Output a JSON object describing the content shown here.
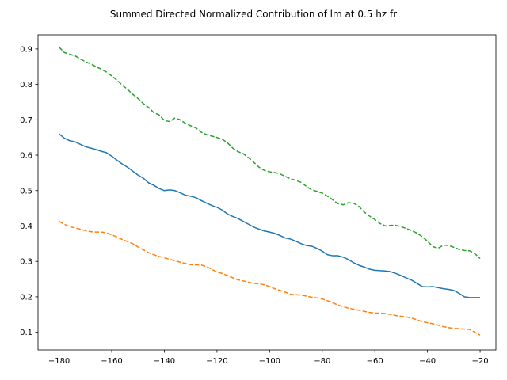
{
  "chart_data": {
    "type": "line",
    "title": "Summed Directed Normalized Contribution of lm at 0.5 hz fr",
    "xlabel": "",
    "ylabel": "",
    "xlim": [
      -188,
      -14
    ],
    "ylim": [
      0.05,
      0.94
    ],
    "x_ticks": [
      -180,
      -160,
      -140,
      -120,
      -100,
      -80,
      -60,
      -40,
      -20
    ],
    "x_tick_labels": [
      "−180",
      "−160",
      "−140",
      "−120",
      "−100",
      "−80",
      "−60",
      "−40",
      "−20"
    ],
    "y_ticks": [
      0.1,
      0.2,
      0.3,
      0.4,
      0.5,
      0.6,
      0.7,
      0.8,
      0.9
    ],
    "y_tick_labels": [
      "0.1",
      "0.2",
      "0.3",
      "0.4",
      "0.5",
      "0.6",
      "0.7",
      "0.8",
      "0.9"
    ],
    "grid": false,
    "legend": "none",
    "x": [
      -180,
      -178,
      -176,
      -174,
      -172,
      -170,
      -168,
      -166,
      -164,
      -162,
      -160,
      -158,
      -156,
      -154,
      -152,
      -150,
      -148,
      -146,
      -144,
      -142,
      -140,
      -138,
      -136,
      -134,
      -132,
      -130,
      -128,
      -126,
      -124,
      -122,
      -120,
      -118,
      -116,
      -114,
      -112,
      -110,
      -108,
      -106,
      -104,
      -102,
      -100,
      -98,
      -96,
      -94,
      -92,
      -90,
      -88,
      -86,
      -84,
      -82,
      -80,
      -78,
      -76,
      -74,
      -72,
      -70,
      -68,
      -66,
      -64,
      -62,
      -60,
      -58,
      -56,
      -54,
      -52,
      -50,
      -48,
      -46,
      -44,
      -42,
      -40,
      -38,
      -36,
      -34,
      -32,
      -30,
      -28,
      -26,
      -24,
      -22,
      -20
    ],
    "series": [
      {
        "color": "#1f77b4",
        "style": "solid",
        "values": [
          0.66,
          0.648,
          0.641,
          0.638,
          0.631,
          0.624,
          0.62,
          0.616,
          0.611,
          0.607,
          0.597,
          0.586,
          0.575,
          0.566,
          0.555,
          0.544,
          0.535,
          0.522,
          0.515,
          0.506,
          0.5,
          0.502,
          0.5,
          0.494,
          0.487,
          0.484,
          0.48,
          0.472,
          0.465,
          0.458,
          0.453,
          0.445,
          0.434,
          0.427,
          0.421,
          0.413,
          0.405,
          0.397,
          0.391,
          0.386,
          0.383,
          0.379,
          0.373,
          0.366,
          0.363,
          0.357,
          0.35,
          0.345,
          0.343,
          0.337,
          0.329,
          0.319,
          0.316,
          0.316,
          0.312,
          0.305,
          0.296,
          0.289,
          0.284,
          0.278,
          0.275,
          0.274,
          0.273,
          0.271,
          0.266,
          0.26,
          0.253,
          0.247,
          0.238,
          0.229,
          0.228,
          0.229,
          0.226,
          0.223,
          0.221,
          0.218,
          0.21,
          0.2,
          0.198,
          0.198,
          0.198
        ]
      },
      {
        "color": "#ff7f0e",
        "style": "dashed",
        "values": [
          0.413,
          0.405,
          0.398,
          0.395,
          0.391,
          0.387,
          0.384,
          0.383,
          0.383,
          0.381,
          0.375,
          0.369,
          0.362,
          0.356,
          0.35,
          0.341,
          0.333,
          0.325,
          0.319,
          0.314,
          0.31,
          0.306,
          0.302,
          0.298,
          0.294,
          0.291,
          0.29,
          0.29,
          0.285,
          0.278,
          0.27,
          0.266,
          0.26,
          0.254,
          0.248,
          0.245,
          0.241,
          0.238,
          0.237,
          0.234,
          0.229,
          0.223,
          0.218,
          0.213,
          0.207,
          0.206,
          0.205,
          0.202,
          0.199,
          0.197,
          0.194,
          0.189,
          0.183,
          0.177,
          0.172,
          0.168,
          0.165,
          0.162,
          0.159,
          0.156,
          0.154,
          0.154,
          0.153,
          0.15,
          0.147,
          0.145,
          0.143,
          0.14,
          0.135,
          0.13,
          0.127,
          0.124,
          0.12,
          0.116,
          0.113,
          0.111,
          0.11,
          0.109,
          0.108,
          0.1,
          0.092
        ]
      },
      {
        "color": "#2ca02c",
        "style": "dashed",
        "values": [
          0.905,
          0.89,
          0.885,
          0.881,
          0.872,
          0.864,
          0.858,
          0.85,
          0.843,
          0.835,
          0.824,
          0.812,
          0.798,
          0.786,
          0.772,
          0.76,
          0.746,
          0.735,
          0.72,
          0.714,
          0.698,
          0.695,
          0.705,
          0.7,
          0.69,
          0.683,
          0.677,
          0.665,
          0.658,
          0.654,
          0.65,
          0.645,
          0.635,
          0.62,
          0.61,
          0.604,
          0.593,
          0.58,
          0.566,
          0.557,
          0.553,
          0.551,
          0.547,
          0.54,
          0.533,
          0.529,
          0.523,
          0.512,
          0.502,
          0.498,
          0.493,
          0.484,
          0.474,
          0.463,
          0.46,
          0.466,
          0.464,
          0.455,
          0.439,
          0.428,
          0.418,
          0.407,
          0.4,
          0.402,
          0.402,
          0.398,
          0.393,
          0.387,
          0.38,
          0.37,
          0.357,
          0.342,
          0.337,
          0.346,
          0.345,
          0.34,
          0.334,
          0.331,
          0.33,
          0.322,
          0.308
        ]
      }
    ]
  }
}
